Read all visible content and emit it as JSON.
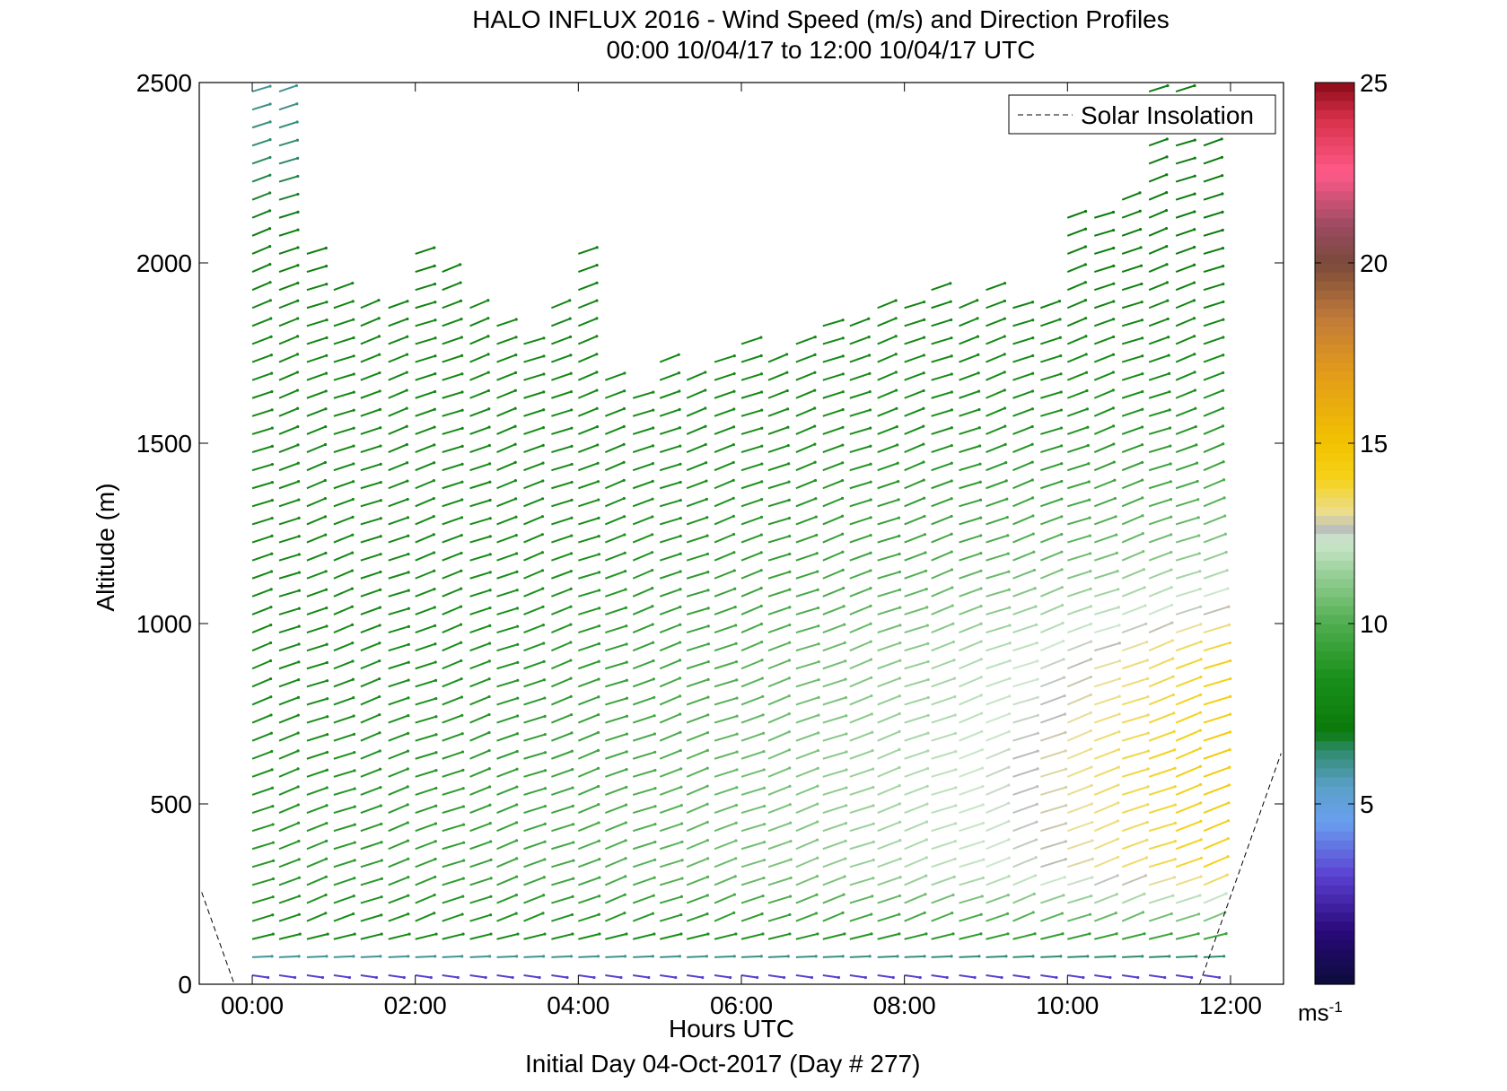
{
  "chart_data": {
    "type": "quiver",
    "title": "HALO INFLUX 2016 - Wind Speed (m/s) and Direction Profiles",
    "subtitle_range": "00:00 10/04/17 to 12:00 10/04/17  UTC",
    "xlabel": "Hours UTC",
    "ylabel": "Altitude (m)",
    "footer": "Initial Day 04-Oct-2017 (Day # 277)",
    "xlim": [
      -0.65,
      12.65
    ],
    "ylim": [
      0,
      2500
    ],
    "x_ticks": [
      0,
      2,
      4,
      6,
      8,
      10,
      12
    ],
    "x_tick_labels": [
      "00:00",
      "02:00",
      "04:00",
      "06:00",
      "08:00",
      "10:00",
      "12:00"
    ],
    "y_ticks": [
      0,
      500,
      1000,
      1500,
      2000,
      2500
    ],
    "y_tick_labels": [
      "0",
      "500",
      "1000",
      "1500",
      "2000",
      "2500"
    ],
    "colorbar": {
      "label": "ms",
      "label_exponent": "-1",
      "range": [
        0,
        25
      ],
      "ticks": [
        5,
        10,
        15,
        20,
        25
      ],
      "tick_labels": [
        "5",
        "10",
        "15",
        "20",
        "25"
      ]
    },
    "legend": {
      "label": "Solar Insolation",
      "position": "top-right"
    },
    "solar_insolation": {
      "segments": [
        {
          "x": [
            -0.62,
            -0.22
          ],
          "y": [
            255,
            0
          ]
        },
        {
          "x": [
            11.62,
            12.62
          ],
          "y": [
            0,
            640
          ]
        }
      ]
    },
    "profile_times": [
      0.0,
      0.33,
      0.67,
      1.0,
      1.33,
      1.67,
      2.0,
      2.33,
      2.67,
      3.0,
      3.33,
      3.67,
      4.0,
      4.33,
      4.67,
      5.0,
      5.33,
      5.67,
      6.0,
      6.33,
      6.67,
      7.0,
      7.33,
      7.67,
      8.0,
      8.33,
      8.67,
      9.0,
      9.33,
      9.67,
      10.0,
      10.33,
      10.67,
      11.0,
      11.33,
      11.67
    ],
    "profile_top_altitude": [
      2500,
      2500,
      2050,
      1950,
      1900,
      1900,
      2050,
      2000,
      1900,
      1850,
      1800,
      1900,
      2050,
      1700,
      1650,
      1750,
      1700,
      1750,
      1800,
      1750,
      1800,
      1850,
      1850,
      1900,
      1900,
      1950,
      1900,
      1950,
      1900,
      1900,
      2150,
      2150,
      2200,
      2500,
      2500,
      2350
    ],
    "speed_profile_altitude": [
      0,
      50,
      100,
      300,
      600,
      900,
      1200,
      1500,
      1800,
      2100,
      2500
    ],
    "speed_profile_early": [
      2,
      4,
      8,
      9,
      8.5,
      8,
      8,
      8,
      8,
      7,
      6
    ],
    "speed_profile_late": [
      2,
      4,
      9,
      14,
      14.5,
      14,
      11,
      9,
      8,
      7,
      7
    ],
    "wind_direction_deg_note": "barbs point toward upper right (from west-southwest)",
    "wind_direction_from_deg": 240
  }
}
